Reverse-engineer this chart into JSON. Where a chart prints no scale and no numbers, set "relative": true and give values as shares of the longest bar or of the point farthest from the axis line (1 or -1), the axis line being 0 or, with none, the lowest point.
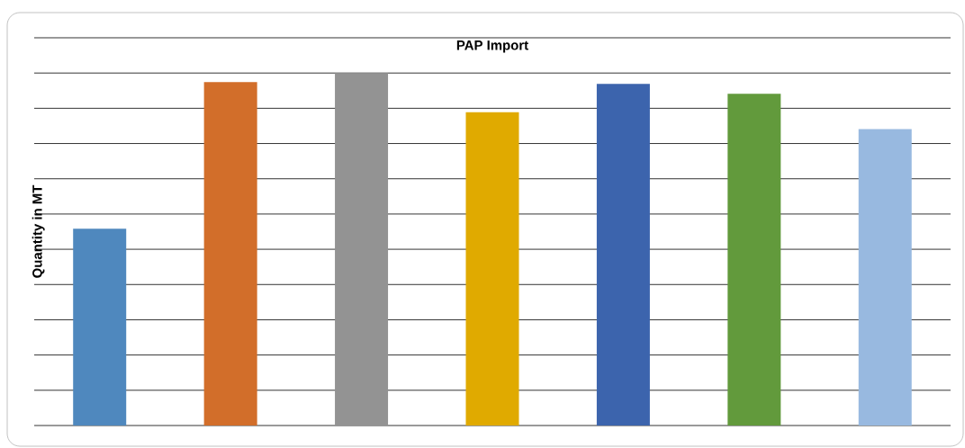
{
  "chart_data": {
    "type": "bar",
    "title": "PAP Import",
    "ylabel": "Quantity in MT",
    "categories": [
      null,
      null,
      null,
      null,
      null,
      null,
      null
    ],
    "values": [
      0.558,
      0.974,
      1,
      0.889,
      0.969,
      0.941,
      0.841
    ],
    "colors": [
      "#4f88be",
      "#d26e2a",
      "#939393",
      "#e0aa00",
      "#3c64ad",
      "#629a3c",
      "#98b9e0"
    ],
    "relative": true,
    "grid": "y"
  }
}
